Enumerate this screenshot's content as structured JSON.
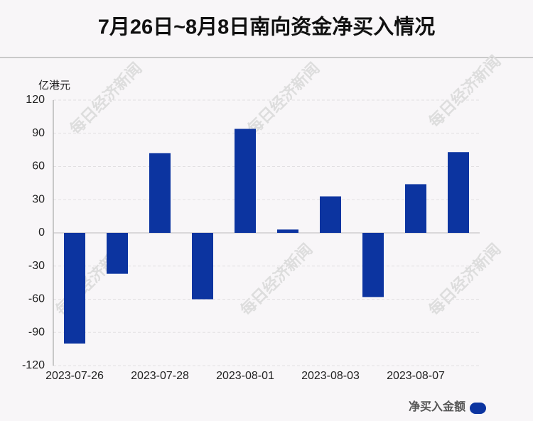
{
  "chart_data": {
    "type": "bar",
    "title": "7月26日~8月8日南向资金净买入情况",
    "y_label": "亿港元",
    "categories": [
      "2023-07-26",
      null,
      "2023-07-28",
      null,
      "2023-08-01",
      null,
      "2023-08-03",
      null,
      "2023-08-07",
      null
    ],
    "series": [
      {
        "name": "净买入金额",
        "color": "#0c34a0",
        "values": [
          -100,
          -37,
          72,
          -60,
          94,
          3,
          33,
          -58,
          44,
          73
        ]
      }
    ],
    "ylim": [
      -120,
      120
    ],
    "yticks": [
      -120,
      -90,
      -60,
      -30,
      0,
      30,
      60,
      90,
      120
    ],
    "grid": true,
    "watermark": "每日经济新闻"
  }
}
